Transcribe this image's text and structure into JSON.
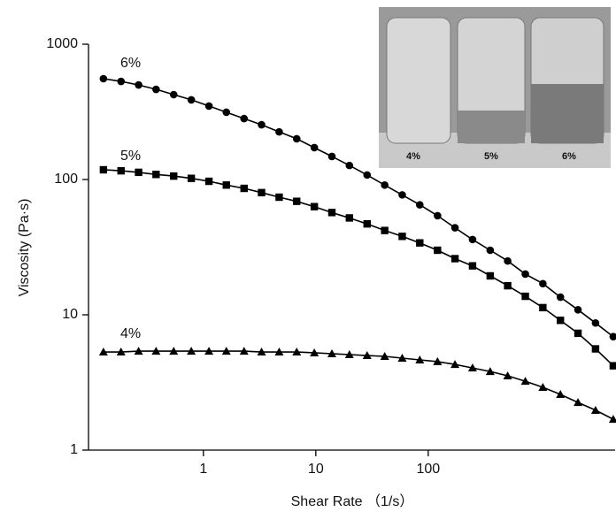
{
  "chart_data": {
    "type": "line",
    "x_label": "Shear Rate （1/s）",
    "y_label": "Viscosity (Pa·s)",
    "log_x": true,
    "log_y": true,
    "xlim": [
      0.095,
      4600
    ],
    "ylim": [
      1,
      1000
    ],
    "xticks": [
      1,
      10,
      100
    ],
    "yticks": [
      1,
      10,
      100,
      1000
    ],
    "x": [
      0.129,
      0.185,
      0.265,
      0.379,
      0.544,
      0.78,
      1.12,
      1.6,
      2.3,
      3.29,
      4.72,
      6.76,
      9.7,
      13.9,
      19.9,
      28.6,
      41,
      58.7,
      84.1,
      121,
      173,
      248,
      356,
      509,
      731,
      1047,
      1500,
      2150,
      3080,
      4430
    ],
    "series": [
      {
        "name": "6%",
        "color": "#000000",
        "marker": "circle",
        "values": [
          556,
          531,
          500,
          464,
          424,
          388,
          349,
          314,
          282,
          254,
          225,
          200,
          172,
          148,
          127,
          108,
          91,
          77,
          65,
          54,
          44,
          36,
          30,
          25,
          20,
          17,
          13.5,
          10.9,
          8.7,
          6.9
        ]
      },
      {
        "name": "5%",
        "color": "#000000",
        "marker": "square",
        "values": [
          118,
          116,
          113,
          109,
          106,
          102,
          97,
          91,
          86,
          80,
          74,
          69,
          63,
          57,
          52,
          47,
          42,
          38,
          34,
          30,
          26,
          23,
          19.4,
          16.4,
          13.7,
          11.3,
          9.1,
          7.3,
          5.6,
          4.2
        ]
      },
      {
        "name": "4%",
        "color": "#000000",
        "marker": "triangle",
        "values": [
          5.31,
          5.31,
          5.39,
          5.39,
          5.39,
          5.39,
          5.39,
          5.39,
          5.39,
          5.31,
          5.31,
          5.31,
          5.24,
          5.16,
          5.08,
          5.0,
          4.93,
          4.78,
          4.64,
          4.51,
          4.3,
          4.05,
          3.81,
          3.54,
          3.23,
          2.91,
          2.58,
          2.25,
          1.97,
          1.69
        ]
      }
    ],
    "inset_labels": [
      "4%",
      "5%",
      "6%"
    ]
  }
}
